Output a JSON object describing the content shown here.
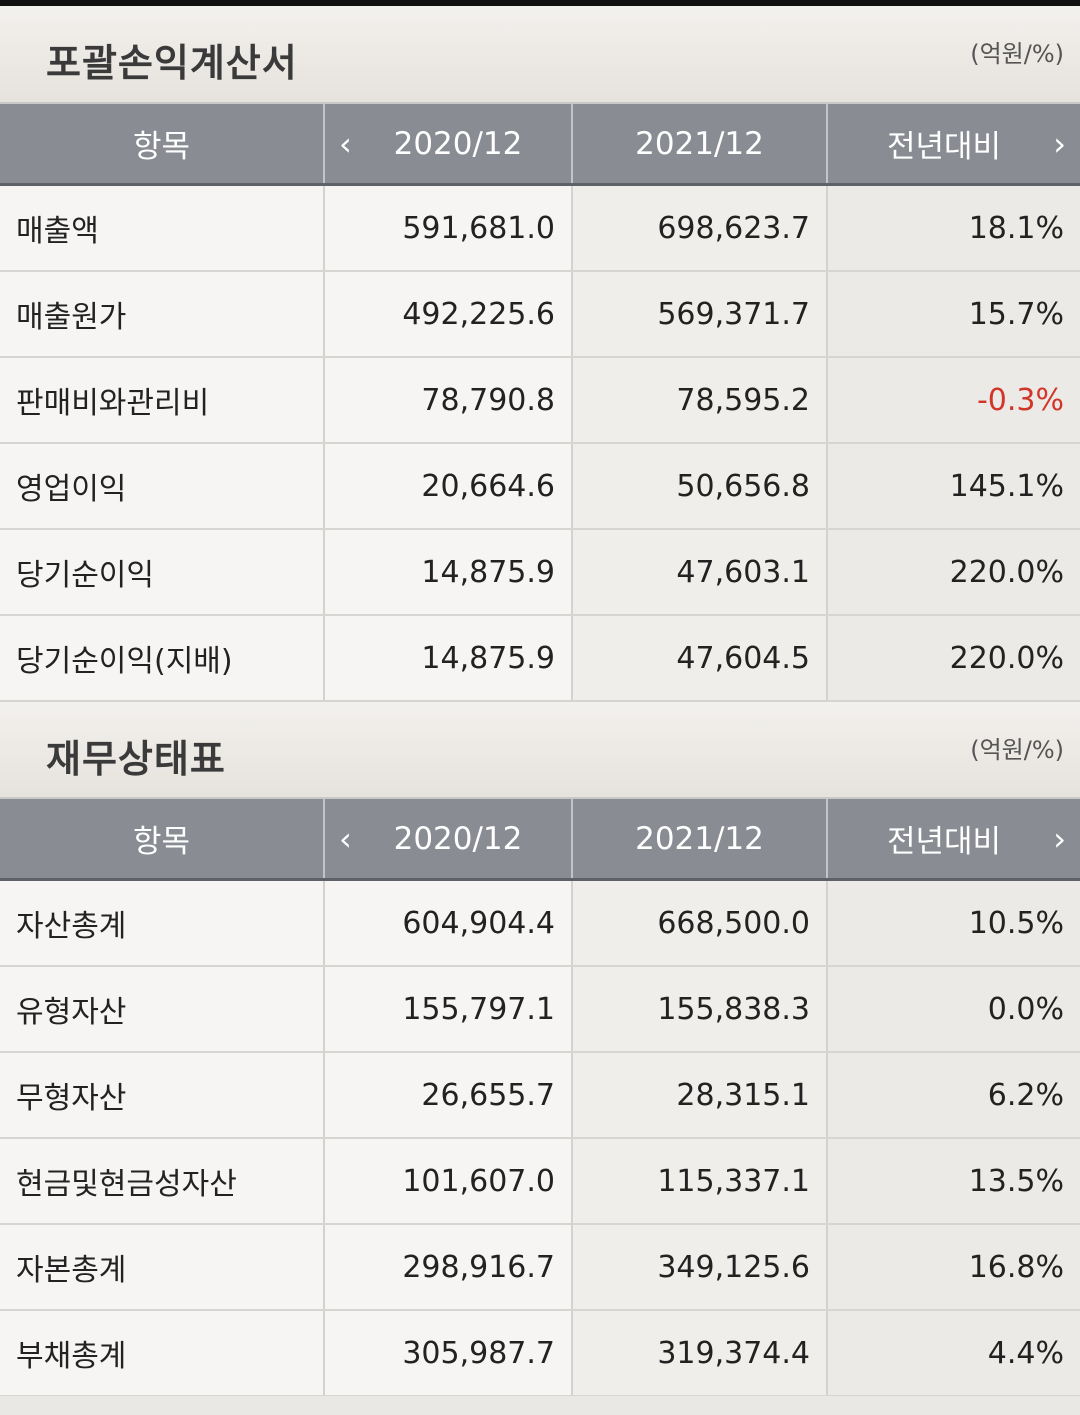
{
  "income": {
    "title": "포괄손익계산서",
    "unit": "(억원/%)",
    "headers": {
      "item": "항목",
      "year1": "2020/12",
      "year2": "2021/12",
      "change": "전년대비"
    },
    "rows": [
      {
        "label": "매출액",
        "v1": "591,681.0",
        "v2": "698,623.7",
        "change": "18.1%"
      },
      {
        "label": "매출원가",
        "v1": "492,225.6",
        "v2": "569,371.7",
        "change": "15.7%"
      },
      {
        "label": "판매비와관리비",
        "v1": "78,790.8",
        "v2": "78,595.2",
        "change": "-0.3%"
      },
      {
        "label": "영업이익",
        "v1": "20,664.6",
        "v2": "50,656.8",
        "change": "145.1%"
      },
      {
        "label": "당기순이익",
        "v1": "14,875.9",
        "v2": "47,603.1",
        "change": "220.0%"
      },
      {
        "label": "당기순이익(지배)",
        "v1": "14,875.9",
        "v2": "47,604.5",
        "change": "220.0%"
      }
    ]
  },
  "balance": {
    "title": "재무상태표",
    "unit": "(억원/%)",
    "headers": {
      "item": "항목",
      "year1": "2020/12",
      "year2": "2021/12",
      "change": "전년대비"
    },
    "rows": [
      {
        "label": "자산총계",
        "v1": "604,904.4",
        "v2": "668,500.0",
        "change": "10.5%"
      },
      {
        "label": "유형자산",
        "v1": "155,797.1",
        "v2": "155,838.3",
        "change": "0.0%"
      },
      {
        "label": "무형자산",
        "v1": "26,655.7",
        "v2": "28,315.1",
        "change": "6.2%"
      },
      {
        "label": "현금및현금성자산",
        "v1": "101,607.0",
        "v2": "115,337.1",
        "change": "13.5%"
      },
      {
        "label": "자본총계",
        "v1": "298,916.7",
        "v2": "349,125.6",
        "change": "16.8%"
      },
      {
        "label": "부채총계",
        "v1": "305,987.7",
        "v2": "319,374.4",
        "change": "4.4%"
      }
    ]
  },
  "icons": {
    "prev": "chevron-left-icon",
    "next": "chevron-right-icon"
  },
  "colors": {
    "header_bg": "#8a8c94",
    "negative": "#d2362b"
  }
}
